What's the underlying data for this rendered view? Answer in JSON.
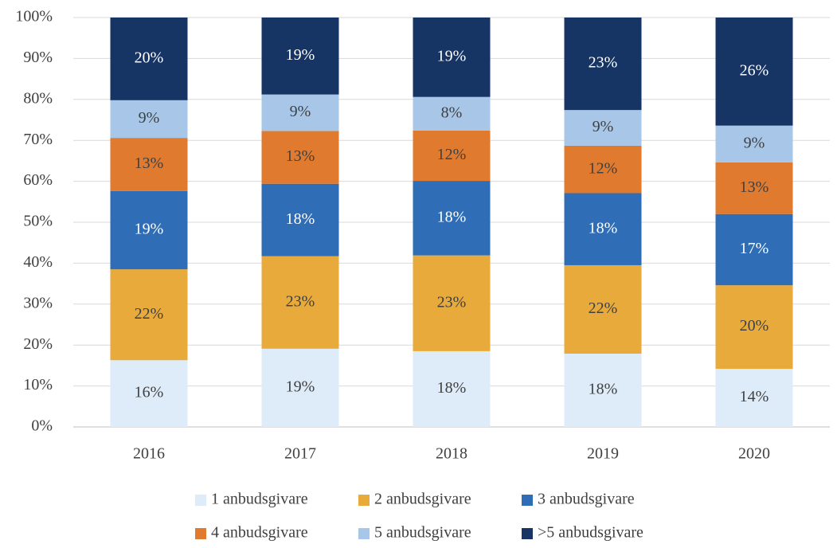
{
  "chart_data": {
    "type": "stacked_bar",
    "categories": [
      "2016",
      "2017",
      "2018",
      "2019",
      "2020"
    ],
    "series": [
      {
        "name": "1 anbudsgivare",
        "color": "#deebf8",
        "label_color": "#404040",
        "values": [
          16.3,
          19.1,
          18.5,
          17.9,
          14.2
        ],
        "value_labels": [
          "16%",
          "19%",
          "18%",
          "18%",
          "14%"
        ]
      },
      {
        "name": "2 anbudsgivare",
        "color": "#e9aa3c",
        "label_color": "#404040",
        "values": [
          22.2,
          22.6,
          23.4,
          21.6,
          20.4
        ],
        "value_labels": [
          "22%",
          "23%",
          "23%",
          "22%",
          "20%"
        ]
      },
      {
        "name": "3 anbudsgivare",
        "color": "#2f6eb6",
        "label_color": "#ffffff",
        "values": [
          19.1,
          17.7,
          18.2,
          17.6,
          17.4
        ],
        "value_labels": [
          "19%",
          "18%",
          "18%",
          "18%",
          "17%"
        ]
      },
      {
        "name": "4 anbudsgivare",
        "color": "#df7a2f",
        "label_color": "#404040",
        "values": [
          13.0,
          12.9,
          12.3,
          11.6,
          12.6
        ],
        "value_labels": [
          "13%",
          "13%",
          "12%",
          "12%",
          "13%"
        ]
      },
      {
        "name": "5 anbudsgivare",
        "color": "#a8c7e8",
        "label_color": "#404040",
        "values": [
          9.2,
          8.9,
          8.2,
          8.7,
          9.0
        ],
        "value_labels": [
          "9%",
          "9%",
          "8%",
          "9%",
          "9%"
        ]
      },
      {
        "name": ">5 anbudsgivare",
        "color": "#173564",
        "label_color": "#ffffff",
        "values": [
          20.2,
          18.8,
          19.4,
          22.6,
          26.4
        ],
        "value_labels": [
          "20%",
          "19%",
          "19%",
          "23%",
          "26%"
        ]
      }
    ],
    "ylim": [
      0,
      100
    ],
    "yticks": [
      {
        "value": 0,
        "label": "0%"
      },
      {
        "value": 10,
        "label": "10%"
      },
      {
        "value": 20,
        "label": "20%"
      },
      {
        "value": 30,
        "label": "30%"
      },
      {
        "value": 40,
        "label": "40%"
      },
      {
        "value": 50,
        "label": "50%"
      },
      {
        "value": 60,
        "label": "60%"
      },
      {
        "value": 70,
        "label": "70%"
      },
      {
        "value": 80,
        "label": "80%"
      },
      {
        "value": 90,
        "label": "90%"
      },
      {
        "value": 100,
        "label": "100%"
      }
    ],
    "grid": true,
    "legend": "bottom"
  }
}
